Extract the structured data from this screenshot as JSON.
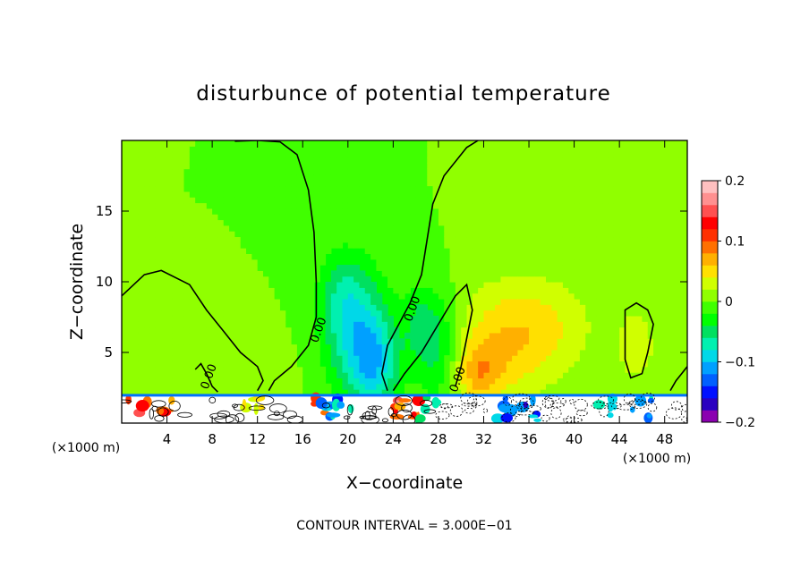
{
  "chart_data": {
    "type": "heatmap",
    "title": "disturbunce of potential temperature",
    "xlabel": "X−coordinate",
    "ylabel": "Z−coordinate",
    "x_unit_label": "(×1000 m)",
    "x_unit_label_right": "(×1000 m)",
    "xlim": [
      0,
      50
    ],
    "ylim": [
      0,
      20
    ],
    "x_ticks": [
      {
        "value": 4,
        "label": "4"
      },
      {
        "value": 8,
        "label": "8"
      },
      {
        "value": 12,
        "label": "12"
      },
      {
        "value": 16,
        "label": "16"
      },
      {
        "value": 20,
        "label": "20"
      },
      {
        "value": 24,
        "label": "24"
      },
      {
        "value": 28,
        "label": "28"
      },
      {
        "value": 32,
        "label": "32"
      },
      {
        "value": 36,
        "label": "36"
      },
      {
        "value": 40,
        "label": "40"
      },
      {
        "value": 44,
        "label": "44"
      },
      {
        "value": 48,
        "label": "48"
      }
    ],
    "y_ticks": [
      {
        "value": 5,
        "label": "5"
      },
      {
        "value": 10,
        "label": "10"
      },
      {
        "value": 15,
        "label": "15"
      }
    ],
    "colorbar": {
      "min": -0.2,
      "max": 0.2,
      "ticks": [
        {
          "value": 0.2,
          "label": "0.2"
        },
        {
          "value": 0.1,
          "label": "0.1"
        },
        {
          "value": 0,
          "label": "0"
        },
        {
          "value": -0.1,
          "label": "−0.1"
        },
        {
          "value": -0.2,
          "label": "−0.2"
        }
      ],
      "colors": [
        "#8b00b0",
        "#2a00c0",
        "#0010ff",
        "#0060ff",
        "#00a0ff",
        "#00d8e8",
        "#00f0b0",
        "#00e060",
        "#00ff00",
        "#40ff00",
        "#90ff00",
        "#d0ff00",
        "#ffe000",
        "#ffb000",
        "#ff7000",
        "#ff3000",
        "#ff0000",
        "#ff5050",
        "#ff9090",
        "#ffc0c0"
      ]
    },
    "contour_interval_text": "CONTOUR INTERVAL = 3.000E−01",
    "contour_labels": [
      {
        "x": 17.7,
        "z": 6.5,
        "text": "0.00"
      },
      {
        "x": 26.0,
        "z": 8.0,
        "text": "0.00"
      },
      {
        "x": 30.0,
        "z": 3.0,
        "text": "0.00"
      },
      {
        "x": 8.0,
        "z": 3.2,
        "text": "0.00"
      }
    ],
    "anomalies": [
      {
        "x": 21.0,
        "z": 6.0,
        "sx": 2.0,
        "sz": 3.2,
        "v": -0.075
      },
      {
        "x": 19.5,
        "z": 9.0,
        "sx": 1.6,
        "sz": 2.4,
        "v": -0.04
      },
      {
        "x": 22.5,
        "z": 4.0,
        "sx": 1.4,
        "sz": 2.2,
        "v": -0.06
      },
      {
        "x": 28.0,
        "z": 5.0,
        "sx": 1.6,
        "sz": 2.8,
        "v": -0.045
      },
      {
        "x": 26.5,
        "z": 7.0,
        "sx": 1.3,
        "sz": 2.0,
        "v": -0.035
      },
      {
        "x": 33.5,
        "z": 5.5,
        "sx": 3.5,
        "sz": 3.0,
        "v": 0.045
      },
      {
        "x": 37.5,
        "z": 7.0,
        "sx": 3.5,
        "sz": 2.5,
        "v": 0.03
      },
      {
        "x": 31.5,
        "z": 3.5,
        "sx": 1.5,
        "sz": 1.5,
        "v": 0.05
      },
      {
        "x": 45.5,
        "z": 5.5,
        "sx": 1.2,
        "sz": 1.8,
        "v": 0.035
      },
      {
        "x": 12.5,
        "z": 3.5,
        "sx": 1.8,
        "sz": 1.8,
        "v": 0.012
      }
    ],
    "surface_layer_top_z": 2.0,
    "notes": "Background field near 0 (green); negative perturbations cyan/blue above x=18–30, weak positive yellow-green near x=30–40 and x=45; turbulent mixed colours and dense contours below z≈2."
  }
}
